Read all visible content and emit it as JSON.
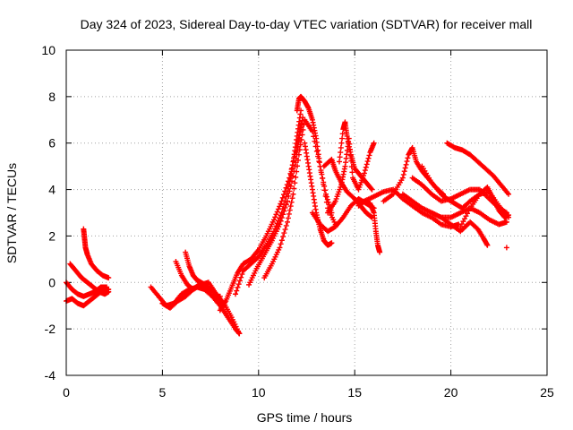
{
  "chart_data": {
    "type": "scatter",
    "title": "Day 324 of 2023, Sidereal Day-to-day VTEC variation (SDTVAR) for receiver mall",
    "xlabel": "GPS time / hours",
    "ylabel": "SDTVAR / TECUs",
    "xlim": [
      0,
      25
    ],
    "ylim": [
      -4,
      10
    ],
    "x_ticks": [
      "0",
      "5",
      "10",
      "15",
      "20",
      "25"
    ],
    "y_ticks": [
      "-4",
      "-2",
      "0",
      "2",
      "4",
      "6",
      "8",
      "10"
    ],
    "grid": true,
    "marker": "plus",
    "marker_color": "#ff0000",
    "series": [
      {
        "name": "s1",
        "x": [
          0.0,
          0.3,
          0.6,
          0.9,
          1.2,
          1.5,
          1.8,
          2.1,
          2.2
        ],
        "y": [
          -0.8,
          -0.7,
          -0.9,
          -1.0,
          -0.8,
          -0.6,
          -0.4,
          -0.3,
          -0.3
        ]
      },
      {
        "name": "s2",
        "x": [
          0.0,
          0.3,
          0.6,
          0.9,
          1.2,
          1.5,
          1.8,
          2.1
        ],
        "y": [
          0.0,
          -0.3,
          -0.5,
          -0.6,
          -0.5,
          -0.4,
          -0.2,
          -0.2
        ]
      },
      {
        "name": "s3",
        "x": [
          0.2,
          0.5,
          0.8,
          1.1,
          1.4,
          1.7,
          2.0,
          2.2
        ],
        "y": [
          0.8,
          0.5,
          0.2,
          0.0,
          -0.2,
          -0.4,
          -0.5,
          -0.4
        ]
      },
      {
        "name": "s4",
        "x": [
          0.9,
          0.95,
          1.0,
          1.1,
          1.3,
          1.6,
          1.9,
          2.2
        ],
        "y": [
          2.3,
          1.9,
          1.5,
          1.2,
          0.8,
          0.5,
          0.3,
          0.2
        ]
      },
      {
        "name": "s5",
        "x": [
          4.4,
          4.8,
          5.2,
          5.6,
          6.0,
          6.4,
          6.8,
          7.2,
          7.6,
          8.0,
          8.4,
          8.8,
          9.0
        ],
        "y": [
          -0.2,
          -0.6,
          -1.0,
          -0.9,
          -0.5,
          -0.3,
          -0.2,
          -0.3,
          -0.6,
          -1.0,
          -1.5,
          -2.0,
          -2.2
        ]
      },
      {
        "name": "s6",
        "x": [
          5.0,
          5.4,
          5.8,
          6.2,
          6.6,
          7.0,
          7.4,
          7.8,
          8.2,
          8.6,
          9.0
        ],
        "y": [
          -0.9,
          -1.1,
          -0.8,
          -0.6,
          -0.3,
          -0.1,
          0.0,
          -0.5,
          -0.9,
          -1.5,
          -2.2
        ]
      },
      {
        "name": "s7",
        "x": [
          5.7,
          6.0,
          6.3,
          6.6,
          6.9,
          7.2,
          7.6,
          8.0
        ],
        "y": [
          0.9,
          0.3,
          -0.1,
          -0.3,
          -0.1,
          -0.3,
          -0.6,
          -0.6
        ]
      },
      {
        "name": "s8",
        "x": [
          6.2,
          6.4,
          6.6,
          6.8,
          7.0,
          7.2,
          7.5,
          7.8,
          8.1
        ],
        "y": [
          1.3,
          0.7,
          0.3,
          0.1,
          0.0,
          -0.1,
          -0.3,
          -0.5,
          -0.9
        ]
      },
      {
        "name": "s9",
        "x": [
          8.0,
          8.3,
          8.6,
          8.9,
          9.2,
          9.6,
          10.0,
          10.4,
          10.8,
          11.2,
          11.6,
          12.0,
          12.2
        ],
        "y": [
          -1.2,
          -0.8,
          -0.2,
          0.4,
          0.8,
          1.0,
          1.4,
          2.0,
          2.7,
          3.5,
          4.5,
          5.8,
          6.8
        ]
      },
      {
        "name": "s10",
        "x": [
          8.8,
          9.2,
          9.6,
          10.0,
          10.4,
          10.8,
          11.2,
          11.6,
          11.8,
          12.0,
          12.2
        ],
        "y": [
          -0.5,
          0.5,
          0.8,
          1.1,
          1.6,
          2.2,
          3.0,
          4.2,
          5.2,
          6.3,
          7.4
        ]
      },
      {
        "name": "s11",
        "x": [
          9.5,
          9.9,
          10.3,
          10.7,
          11.1,
          11.5,
          11.9,
          12.1,
          12.3
        ],
        "y": [
          -0.1,
          0.6,
          1.2,
          1.8,
          2.5,
          3.5,
          5.0,
          6.2,
          7.1
        ]
      },
      {
        "name": "s12",
        "x": [
          10.3,
          10.7,
          11.1,
          11.5,
          11.8,
          12.1,
          12.4,
          12.8,
          13.2,
          13.6,
          14.0
        ],
        "y": [
          0.2,
          0.8,
          1.5,
          2.6,
          3.8,
          5.5,
          7.0,
          6.5,
          5.0,
          3.2,
          2.5
        ]
      },
      {
        "name": "s13",
        "x": [
          12.0,
          12.1,
          12.2,
          12.4,
          12.6,
          12.8,
          13.0,
          13.2,
          13.5,
          13.8
        ],
        "y": [
          7.4,
          7.9,
          8.0,
          7.8,
          7.5,
          7.0,
          6.2,
          5.0,
          3.8,
          3.0
        ]
      },
      {
        "name": "s14",
        "x": [
          12.4,
          12.6,
          12.8,
          13.0,
          13.2,
          13.4,
          13.6,
          13.8
        ],
        "y": [
          6.0,
          5.0,
          4.0,
          3.0,
          2.3,
          1.8,
          1.6,
          1.7
        ]
      },
      {
        "name": "s15",
        "x": [
          12.8,
          13.2,
          13.6,
          14.0,
          14.4,
          14.8,
          15.2,
          15.6,
          16.0
        ],
        "y": [
          3.0,
          2.5,
          2.2,
          2.4,
          2.8,
          3.3,
          3.6,
          3.4,
          3.2
        ]
      },
      {
        "name": "s16",
        "x": [
          13.6,
          14.0,
          14.3,
          14.5,
          14.7,
          14.9,
          15.2,
          15.5,
          15.8,
          16.0
        ],
        "y": [
          3.0,
          3.5,
          4.2,
          5.0,
          6.2,
          4.5,
          4.0,
          4.7,
          5.6,
          6.0
        ]
      },
      {
        "name": "s17",
        "x": [
          14.2,
          14.4,
          14.5,
          14.6,
          14.8,
          15.0,
          15.3,
          15.6,
          15.9
        ],
        "y": [
          5.2,
          6.6,
          6.9,
          6.3,
          5.5,
          4.9,
          4.6,
          4.3,
          4.0
        ]
      },
      {
        "name": "s18",
        "x": [
          13.4,
          13.8,
          14.0,
          14.3,
          14.6,
          15.0,
          15.3,
          15.6,
          15.9
        ],
        "y": [
          5.0,
          5.3,
          4.8,
          4.3,
          3.9,
          3.6,
          3.3,
          3.0,
          2.8
        ]
      },
      {
        "name": "s19",
        "x": [
          15.2,
          15.5,
          15.8,
          16.0,
          16.1,
          16.2,
          16.3
        ],
        "y": [
          3.3,
          3.5,
          3.4,
          3.0,
          2.2,
          1.6,
          1.3
        ]
      },
      {
        "name": "s20",
        "x": [
          15.5,
          16.0,
          16.5,
          17.0,
          17.5,
          18.0,
          18.5,
          19.0,
          19.5,
          20.0,
          20.4
        ],
        "y": [
          3.5,
          3.7,
          3.9,
          4.0,
          3.6,
          3.3,
          3.0,
          2.8,
          2.5,
          2.4,
          2.5
        ]
      },
      {
        "name": "s21",
        "x": [
          16.5,
          17.0,
          17.5,
          17.8,
          18.0,
          18.2,
          18.5,
          18.8,
          19.2,
          19.6
        ],
        "y": [
          3.5,
          3.8,
          4.5,
          5.5,
          5.8,
          5.2,
          4.8,
          4.5,
          4.1,
          3.8
        ]
      },
      {
        "name": "s22",
        "x": [
          17.5,
          18.0,
          18.5,
          19.0,
          19.5,
          20.0,
          20.5,
          21.0,
          21.5,
          22.0,
          22.5,
          22.9
        ],
        "y": [
          3.8,
          3.5,
          3.2,
          3.0,
          2.8,
          2.8,
          3.0,
          3.2,
          3.0,
          2.7,
          2.5,
          2.6
        ]
      },
      {
        "name": "s23",
        "x": [
          18.0,
          18.5,
          19.0,
          19.5,
          20.0,
          20.5,
          21.0,
          21.5,
          22.0,
          22.5,
          22.9
        ],
        "y": [
          4.5,
          4.2,
          3.8,
          3.5,
          3.6,
          3.8,
          4.0,
          4.0,
          3.6,
          3.2,
          3.0
        ]
      },
      {
        "name": "s24",
        "x": [
          18.5,
          19.0,
          19.5,
          19.8,
          20.2,
          20.6,
          21.0,
          21.5,
          22.0,
          22.5,
          23.0
        ],
        "y": [
          5.0,
          4.3,
          3.8,
          3.6,
          3.4,
          3.2,
          3.5,
          3.8,
          3.9,
          3.3,
          2.8
        ]
      },
      {
        "name": "s25",
        "x": [
          19.8,
          20.2,
          20.6,
          21.0,
          21.4,
          21.8,
          22.2,
          22.6,
          23.0
        ],
        "y": [
          6.0,
          5.8,
          5.7,
          5.5,
          5.2,
          4.9,
          4.6,
          4.2,
          3.8
        ]
      },
      {
        "name": "s26",
        "x": [
          19.0,
          19.5,
          20.0,
          20.5,
          21.0,
          21.4,
          21.7,
          21.9
        ],
        "y": [
          3.0,
          2.8,
          2.5,
          2.2,
          2.6,
          2.3,
          1.9,
          1.6
        ]
      },
      {
        "name": "s27",
        "x": [
          20.5,
          21.0,
          21.5,
          21.9,
          22.2,
          22.5,
          22.8,
          23.0
        ],
        "y": [
          2.4,
          3.2,
          3.8,
          4.1,
          3.6,
          3.1,
          2.8,
          2.9
        ]
      },
      {
        "name": "s28",
        "x": [
          22.9
        ],
        "y": [
          1.5
        ]
      }
    ]
  }
}
